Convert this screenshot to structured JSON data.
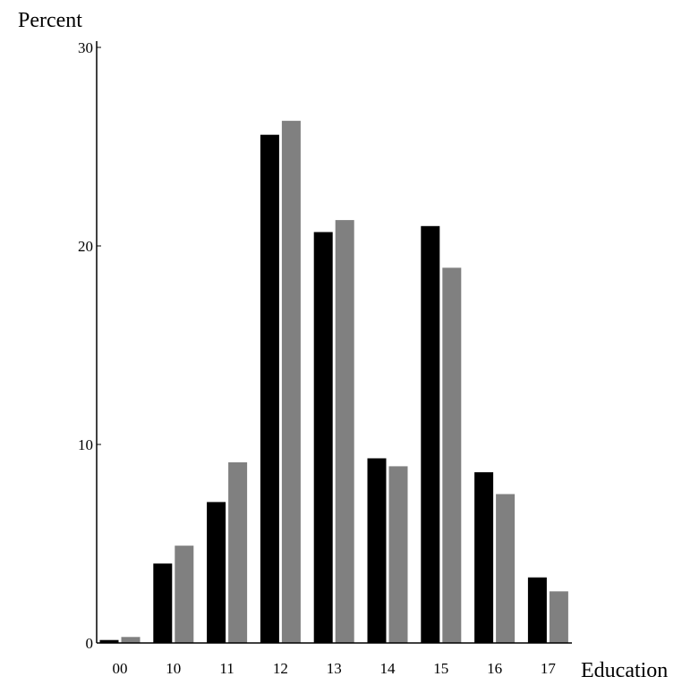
{
  "chart_data": {
    "type": "bar",
    "title": "",
    "xlabel": "Education",
    "ylabel": "Percent",
    "ylim": [
      0,
      30
    ],
    "yticks": [
      0,
      10,
      20,
      30
    ],
    "grid": false,
    "categories": [
      "00",
      "10",
      "11",
      "12",
      "13",
      "14",
      "15",
      "16",
      "17"
    ],
    "series": [
      {
        "color": "#000000",
        "values": [
          0.15,
          4.0,
          7.1,
          25.6,
          20.7,
          9.3,
          21.0,
          8.6,
          3.3
        ]
      },
      {
        "color": "#808080",
        "values": [
          0.3,
          4.9,
          9.1,
          26.3,
          21.3,
          8.9,
          18.9,
          7.5,
          2.6
        ]
      }
    ]
  }
}
